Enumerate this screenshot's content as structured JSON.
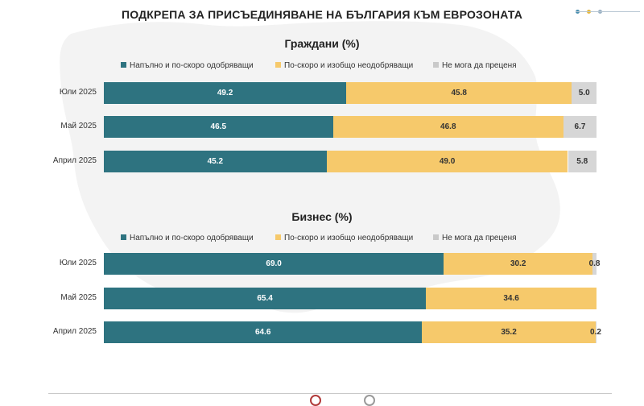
{
  "title": "ПОДКРЕПА ЗА ПРИСЪЕДИНЯВАНЕ НА БЪЛГАРИЯ КЪМ ЕВРОЗОНАТА",
  "colors": {
    "approve": "#2e7380",
    "disapprove": "#f6c96b",
    "unsure": "#d6d6d6",
    "map": "#f3f3f3"
  },
  "chart_data": [
    {
      "type": "bar",
      "orientation": "horizontal-stacked",
      "title": "Граждани (%)",
      "categories": [
        "Юли 2025",
        "Май 2025",
        "Април 2025"
      ],
      "series": [
        {
          "name": "Напълно и по-скоро одобряващи",
          "values": [
            49.2,
            46.5,
            45.2
          ]
        },
        {
          "name": "По-скоро и изобщо неодобряващи",
          "values": [
            45.8,
            46.8,
            49.0
          ]
        },
        {
          "name": "Не мога да преценя",
          "values": [
            5.0,
            6.7,
            5.8
          ]
        }
      ],
      "xlim": [
        0,
        100
      ],
      "legend": "top",
      "grid": false
    },
    {
      "type": "bar",
      "orientation": "horizontal-stacked",
      "title": "Бизнес (%)",
      "categories": [
        "Юли 2025",
        "Май 2025",
        "Април 2025"
      ],
      "series": [
        {
          "name": "Напълно и по-скоро одобряващи",
          "values": [
            69.0,
            65.4,
            64.6
          ]
        },
        {
          "name": "По-скоро и изобщо неодобряващи",
          "values": [
            30.2,
            34.6,
            35.2
          ]
        },
        {
          "name": "Не мога да преценя",
          "values": [
            0.8,
            null,
            0.2
          ]
        }
      ],
      "xlim": [
        0,
        100
      ],
      "legend": "top",
      "grid": false
    }
  ]
}
